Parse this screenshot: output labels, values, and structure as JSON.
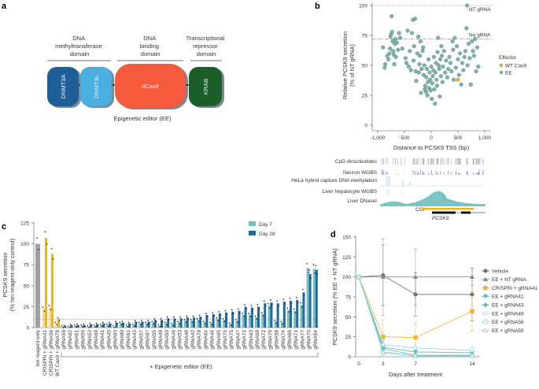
{
  "panel_labels": {
    "a": "a",
    "b": "b",
    "c": "c",
    "d": "d"
  },
  "panel_a": {
    "domains": [
      {
        "header": [
          "DNA",
          "methyltransferase",
          "domain"
        ]
      },
      {
        "header": [
          "DNA",
          "binding",
          "domain"
        ]
      },
      {
        "header": [
          "Transcriptional",
          "repressor",
          "domain"
        ]
      }
    ],
    "proteins": [
      {
        "name": "DNMT3A",
        "color": "#1f5f99"
      },
      {
        "name": "DNMT3L",
        "color": "#4aaee0"
      },
      {
        "name": "dCas9",
        "color": "#f55a3c"
      },
      {
        "name": "KRAB",
        "color": "#1c5e2a"
      }
    ],
    "caption": "Epigenetic editor (EE)"
  },
  "chart_data": [
    {
      "panel": "b",
      "type": "scatter",
      "xlabel": "Distance to PCSK9 TSS (bp)",
      "ylabel": [
        "Relative PCSK9 secretion",
        "(% of NT gRNA)"
      ],
      "xlim": [
        -1000,
        1000
      ],
      "ylim": [
        0,
        100
      ],
      "xticks": [
        "-1,000",
        "-500",
        "0",
        "500",
        "1,000"
      ],
      "yticks": [
        "0",
        "25",
        "50",
        "75",
        "100"
      ],
      "reference_lines": [
        {
          "label": "NT gRNA",
          "y": 100,
          "style": "dotted"
        },
        {
          "label": "No gRNA",
          "y": 72,
          "style": "dash-dot"
        }
      ],
      "legend": {
        "title": "Effector",
        "placement": "right",
        "entries": [
          {
            "name": "WT Cas9",
            "color": "#f0b429"
          },
          {
            "name": "EE",
            "color": "#7fb5b1"
          }
        ]
      },
      "series": [
        {
          "name": "WT Cas9",
          "points": [
            [
              500,
              38
            ]
          ]
        },
        {
          "name": "EE",
          "points": [
            [
              -900,
              65
            ],
            [
              -870,
              48
            ],
            [
              -860,
              51
            ],
            [
              -820,
              58
            ],
            [
              -800,
              55
            ],
            [
              -780,
              60
            ],
            [
              -770,
              64
            ],
            [
              -760,
              74
            ],
            [
              -750,
              76
            ],
            [
              -740,
              91
            ],
            [
              -730,
              78
            ],
            [
              -720,
              70
            ],
            [
              -710,
              62
            ],
            [
              -700,
              59
            ],
            [
              -690,
              51
            ],
            [
              -680,
              68
            ],
            [
              -670,
              72
            ],
            [
              -660,
              57
            ],
            [
              -640,
              69
            ],
            [
              -620,
              63
            ],
            [
              -600,
              77
            ],
            [
              -580,
              73
            ],
            [
              -540,
              64
            ],
            [
              -480,
              56
            ],
            [
              -460,
              52
            ],
            [
              -440,
              79
            ],
            [
              -420,
              49
            ],
            [
              -400,
              62
            ],
            [
              -380,
              46
            ],
            [
              -360,
              77
            ],
            [
              -340,
              88
            ],
            [
              -330,
              54
            ],
            [
              -320,
              66
            ],
            [
              -300,
              89
            ],
            [
              -290,
              45
            ],
            [
              -280,
              37
            ],
            [
              -260,
              60
            ],
            [
              -240,
              74
            ],
            [
              -230,
              44
            ],
            [
              -220,
              51
            ],
            [
              -210,
              58
            ],
            [
              -200,
              70
            ],
            [
              -190,
              27
            ],
            [
              -180,
              47
            ],
            [
              -160,
              62
            ],
            [
              -150,
              65
            ],
            [
              -140,
              42
            ],
            [
              -130,
              50
            ],
            [
              -120,
              30
            ],
            [
              -110,
              33
            ],
            [
              -100,
              28
            ],
            [
              -90,
              40
            ],
            [
              -80,
              47
            ],
            [
              -70,
              25
            ],
            [
              -60,
              36
            ],
            [
              -50,
              55
            ],
            [
              -40,
              31
            ],
            [
              -30,
              44
            ],
            [
              -20,
              38
            ],
            [
              -10,
              29
            ],
            [
              0,
              49
            ],
            [
              10,
              22
            ],
            [
              20,
              35
            ],
            [
              30,
              41
            ],
            [
              40,
              46
            ],
            [
              50,
              57
            ],
            [
              60,
              30
            ],
            [
              70,
              18
            ],
            [
              80,
              44
            ],
            [
              90,
              52
            ],
            [
              100,
              38
            ],
            [
              110,
              33
            ],
            [
              120,
              61
            ],
            [
              130,
              73
            ],
            [
              140,
              50
            ],
            [
              150,
              47
            ],
            [
              160,
              24
            ],
            [
              170,
              55
            ],
            [
              180,
              41
            ],
            [
              190,
              66
            ],
            [
              200,
              58
            ],
            [
              210,
              36
            ],
            [
              220,
              49
            ],
            [
              240,
              62
            ],
            [
              260,
              44
            ],
            [
              280,
              54
            ],
            [
              300,
              40
            ],
            [
              320,
              47
            ],
            [
              340,
              57
            ],
            [
              360,
              52
            ],
            [
              380,
              45
            ],
            [
              400,
              70
            ],
            [
              410,
              63
            ],
            [
              420,
              38
            ],
            [
              440,
              73
            ],
            [
              460,
              48
            ],
            [
              480,
              66
            ],
            [
              500,
              55
            ],
            [
              520,
              42
            ],
            [
              540,
              60
            ],
            [
              560,
              34
            ],
            [
              580,
              52
            ],
            [
              600,
              46
            ],
            [
              620,
              57
            ],
            [
              640,
              62
            ],
            [
              660,
              81
            ],
            [
              670,
              100
            ],
            [
              680,
              50
            ],
            [
              700,
              68
            ],
            [
              720,
              56
            ],
            [
              740,
              34
            ],
            [
              760,
              70
            ],
            [
              780,
              62
            ],
            [
              800,
              58
            ],
            [
              820,
              72
            ],
            [
              840,
              45
            ],
            [
              860,
              65
            ],
            [
              880,
              49
            ]
          ]
        }
      ],
      "tracks": [
        "CpG dinucleotides",
        "Neuron WGBS",
        "HeLa hybrid capture DNA methylation",
        "Liver hepatocyte WGBS",
        "Liver DNaseI"
      ],
      "annotations": {
        "cgi": "CGI",
        "gene": "PCSK9"
      }
    },
    {
      "panel": "c",
      "type": "bar",
      "ylabel": [
        "PCSK9 secretion",
        "(% txn reagent-only control)"
      ],
      "ylim": [
        0,
        125
      ],
      "yticks": [
        "0",
        "25",
        "50",
        "75",
        "100",
        "125"
      ],
      "threshold_line": 10,
      "group_label": "+ Epigenetic editor (EE)",
      "legend": {
        "placement": "top-right",
        "entries": [
          {
            "name": "Day 7",
            "color": "#74c0c2"
          },
          {
            "name": "Day 28",
            "color": "#1f6aa0"
          }
        ]
      },
      "controls": [
        {
          "label": "txn reagent only",
          "day7": 100,
          "day28": null,
          "color": "#a0a0a0"
        },
        {
          "label": "CRISPRi + gRNA41",
          "day7": 22,
          "day28": 107,
          "color": "#f0b429"
        },
        {
          "label": "CRISPRi + gRNA56",
          "day7": 24,
          "day28": 88,
          "color": "#f0b429"
        },
        {
          "label": "WT Cas9 + gRNA79",
          "day7": 5,
          "day28": 10,
          "color": "#f0b429"
        }
      ],
      "categories": [
        "gRNA56",
        "gRNA62",
        "gRNA51",
        "gRNA59",
        "gRNA52",
        "gRNA69",
        "gRNA41",
        "gRNA45",
        "gRNA60",
        "gRNA80",
        "gRNA61",
        "gRNA43",
        "gRNA57",
        "gRNA67",
        "gRNA55",
        "gRNA49",
        "gRNA50",
        "gRNA46",
        "gRNA53",
        "gRNA48",
        "gRNA42",
        "gRNA78",
        "gRNA64",
        "gRNA44",
        "gRNA65",
        "gRNA76",
        "gRNA75",
        "gRNA47",
        "gRNA73",
        "gRNA63",
        "gRNA68",
        "gRNA72",
        "gRNA79",
        "gRNA58",
        "gRNA74",
        "gRNA66",
        "gRNA71",
        "gRNA77",
        "gRNA70",
        "gRNA54"
      ],
      "series": [
        {
          "name": "Day 7",
          "values": [
            1,
            1,
            2,
            2,
            1,
            2,
            3,
            3,
            1,
            5,
            2,
            3,
            5,
            5,
            6,
            2,
            5,
            4,
            6,
            8,
            8,
            9,
            6,
            5,
            10,
            9,
            4,
            8,
            15,
            15,
            12,
            16,
            26,
            7,
            6,
            21,
            20,
            27,
            71,
            70
          ]
        },
        {
          "name": "Day 28",
          "values": [
            2,
            3,
            3,
            3,
            4,
            4,
            5,
            5,
            6,
            6,
            5,
            7,
            7,
            7,
            9,
            9,
            11,
            11,
            11,
            12,
            12,
            13,
            15,
            16,
            17,
            18,
            19,
            20,
            25,
            24,
            25,
            29,
            30,
            29,
            31,
            32,
            33,
            42,
            64,
            69
          ]
        }
      ]
    },
    {
      "panel": "d",
      "type": "line",
      "xlabel": "Days after treatment",
      "ylabel": "PCSK9 secretion (% EE + NT gRNA)",
      "x": [
        0,
        3,
        7,
        14
      ],
      "xticks": [
        "0",
        "3",
        "7",
        "14"
      ],
      "ylim": [
        0,
        150
      ],
      "yticks": [
        "0",
        "25",
        "50",
        "75",
        "100",
        "125",
        "150"
      ],
      "legend": {
        "placement": "right"
      },
      "series": [
        {
          "name": "Vehicle",
          "color": "#6d6d6d",
          "marker": "circle",
          "values": [
            100,
            102,
            78,
            78
          ],
          "err": [
            0,
            38,
            27,
            33
          ]
        },
        {
          "name": "EE + NT gRNA",
          "color": "#8a8a8a",
          "marker": "triangle",
          "values": [
            100,
            100,
            100,
            100
          ],
          "err": [
            0,
            48,
            35,
            11
          ]
        },
        {
          "name": "CRISPRi + gRNA41",
          "color": "#f0b429",
          "marker": "square",
          "values": [
            100,
            25,
            24,
            57
          ],
          "err": [
            0,
            21,
            18,
            25
          ]
        },
        {
          "name": "EE + gRNA41",
          "color": "#5fb5b8",
          "marker": "triangle-down",
          "values": [
            100,
            12,
            6,
            5
          ],
          "err": [
            0,
            8,
            3,
            3
          ]
        },
        {
          "name": "EE + gRNA43",
          "color": "#5fb5b8",
          "marker": "diamond",
          "values": [
            100,
            10,
            2,
            2
          ],
          "err": [
            0,
            6,
            2,
            2
          ]
        },
        {
          "name": "EE + gRNA49",
          "color": "#8ccfd1",
          "marker": "circle-open",
          "values": [
            100,
            15,
            11,
            8
          ],
          "err": [
            0,
            7,
            4,
            4
          ]
        },
        {
          "name": "EE + gRNA56",
          "color": "#8ccfd1",
          "marker": "square-open",
          "values": [
            100,
            6,
            1,
            1
          ],
          "err": [
            0,
            3,
            1,
            1
          ]
        },
        {
          "name": "EE + gRNA59",
          "color": "#8ccfd1",
          "marker": "triangle-open",
          "values": [
            100,
            5,
            1,
            1
          ],
          "err": [
            0,
            3,
            1,
            1
          ]
        }
      ]
    }
  ]
}
